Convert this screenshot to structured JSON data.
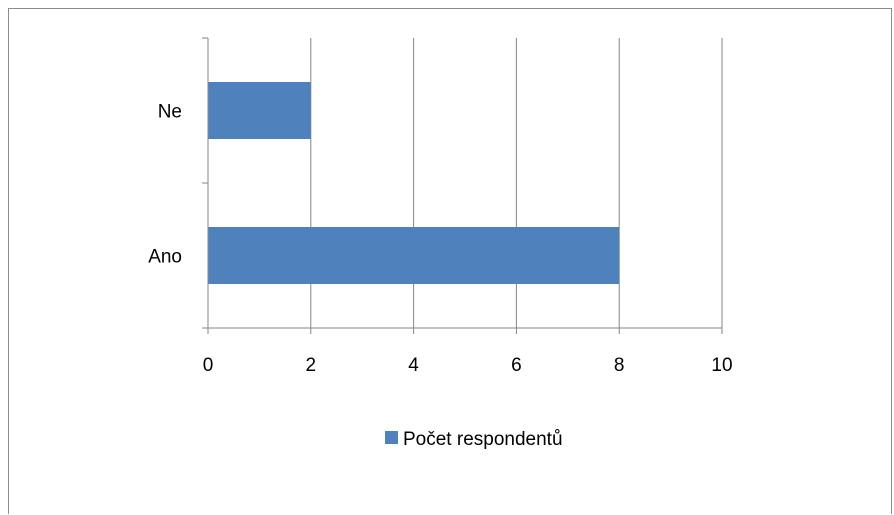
{
  "chart_data": {
    "type": "bar",
    "orientation": "horizontal",
    "categories": [
      "Ano",
      "Ne"
    ],
    "series": [
      {
        "name": "Počet respondentů",
        "values": [
          8,
          2
        ],
        "color": "#4f81bd"
      }
    ],
    "xlim": [
      0,
      10
    ],
    "x_ticks": [
      0,
      2,
      4,
      6,
      8,
      10
    ],
    "x_tick_labels": [
      "0",
      "2",
      "4",
      "6",
      "8",
      "10"
    ],
    "grid": "vertical",
    "legend": {
      "placement": "bottom",
      "entries": [
        "Počet respondentů"
      ]
    },
    "title": "",
    "xlabel": "",
    "ylabel": ""
  }
}
